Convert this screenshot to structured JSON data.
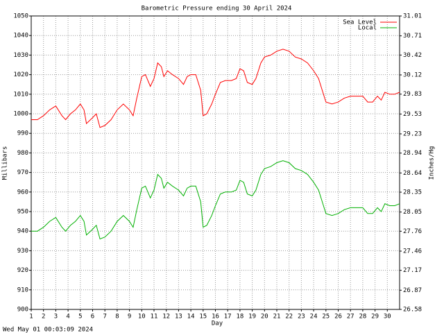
{
  "chart_data": {
    "type": "line",
    "title": "Barometric Pressure ending 30 April 2024",
    "xlabel": "Day",
    "ylabel": "Millibars",
    "y2label": "Inches/Hg",
    "footer": "Wed May 01 00:03:09 2024",
    "x": [
      1.0,
      1.5,
      2.0,
      2.5,
      3.0,
      3.5,
      3.8,
      4.2,
      4.6,
      5.0,
      5.3,
      5.5,
      6.0,
      6.3,
      6.6,
      7.0,
      7.5,
      8.0,
      8.5,
      9.0,
      9.3,
      9.6,
      10.0,
      10.3,
      10.7,
      11.0,
      11.3,
      11.6,
      11.8,
      12.1,
      12.5,
      13.0,
      13.4,
      13.7,
      14.0,
      14.4,
      14.8,
      15.0,
      15.3,
      15.7,
      16.0,
      16.4,
      16.8,
      17.3,
      17.7,
      18.0,
      18.3,
      18.6,
      19.0,
      19.3,
      19.7,
      20.0,
      20.5,
      21.0,
      21.5,
      22.0,
      22.5,
      23.0,
      23.5,
      24.0,
      24.4,
      24.7,
      25.0,
      25.5,
      26.0,
      26.5,
      27.0,
      27.5,
      28.0,
      28.4,
      28.8,
      29.2,
      29.5,
      29.8,
      30.2,
      30.6,
      31.0
    ],
    "series": [
      {
        "name": "Sea Level",
        "color": "#ff0000",
        "values": [
          997,
          997,
          999,
          1002,
          1004,
          999,
          997,
          1000,
          1002,
          1005,
          1002,
          995,
          998,
          1000,
          993,
          994,
          997,
          1002,
          1005,
          1002,
          999,
          1008,
          1019,
          1020,
          1014,
          1018,
          1026,
          1024,
          1019,
          1022,
          1020,
          1018,
          1015,
          1019,
          1020,
          1020,
          1012,
          999,
          1000,
          1005,
          1010,
          1016,
          1017,
          1017,
          1018,
          1023,
          1022,
          1016,
          1015,
          1018,
          1026,
          1029,
          1030,
          1032,
          1033,
          1032,
          1029,
          1028,
          1026,
          1022,
          1018,
          1012,
          1006,
          1005,
          1006,
          1008,
          1009,
          1009,
          1009,
          1006,
          1006,
          1009,
          1007,
          1011,
          1010,
          1010,
          1011
        ]
      },
      {
        "name": "Local",
        "color": "#00b000",
        "values": [
          940,
          940,
          942,
          945,
          947,
          942,
          940,
          943,
          945,
          948,
          945,
          938,
          941,
          943,
          936,
          937,
          940,
          945,
          948,
          945,
          942,
          951,
          962,
          963,
          957,
          961,
          969,
          967,
          962,
          965,
          963,
          961,
          958,
          962,
          963,
          963,
          955,
          942,
          943,
          948,
          953,
          959,
          960,
          960,
          961,
          966,
          965,
          959,
          958,
          961,
          969,
          972,
          973,
          975,
          976,
          975,
          972,
          971,
          969,
          965,
          961,
          955,
          949,
          948,
          949,
          951,
          952,
          952,
          952,
          949,
          949,
          952,
          950,
          954,
          953,
          953,
          954
        ]
      }
    ],
    "xlim": [
      1,
      31
    ],
    "xticks": [
      1,
      2,
      3,
      4,
      5,
      6,
      7,
      8,
      9,
      10,
      11,
      12,
      13,
      14,
      15,
      16,
      17,
      18,
      19,
      20,
      21,
      22,
      23,
      24,
      25,
      26,
      27,
      28,
      29,
      30
    ],
    "ylim": [
      900,
      1050
    ],
    "yticks": [
      900,
      910,
      920,
      930,
      940,
      950,
      960,
      970,
      980,
      990,
      1000,
      1010,
      1020,
      1030,
      1040,
      1050
    ],
    "y2lim": [
      26.58,
      31.01
    ],
    "y2ticks": [
      26.58,
      26.87,
      27.17,
      27.46,
      27.76,
      28.05,
      28.35,
      28.64,
      28.94,
      29.23,
      29.53,
      29.83,
      30.12,
      30.42,
      30.71,
      31.01
    ],
    "grid": true,
    "legend": "top-right"
  }
}
